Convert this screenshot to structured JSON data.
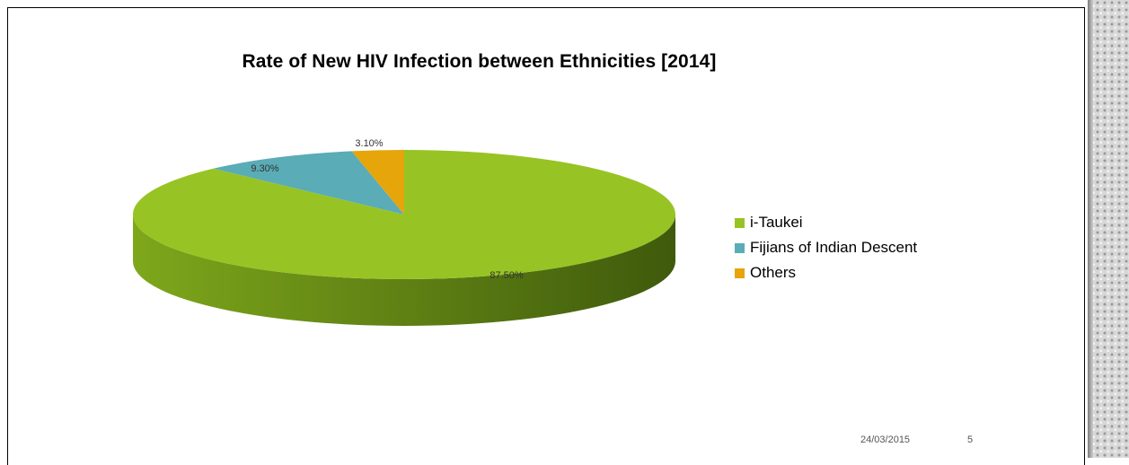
{
  "chart_data": {
    "type": "pie",
    "title": "Rate of New HIV Infection between Ethnicities [2014]",
    "slices": [
      {
        "label": "i-Taukei",
        "value": 87.5,
        "value_label": "87.50%",
        "color": "#97c424",
        "side_light": "#7ea71b",
        "side_dark": "#3f5a0c"
      },
      {
        "label": "Fijians of Indian Descent",
        "value": 9.3,
        "value_label": "9.30%",
        "color": "#5aacb6",
        "side_light": "#4a939b",
        "side_dark": "#2f6369"
      },
      {
        "label": "Others",
        "value": 3.1,
        "value_label": "3.10%",
        "color": "#e6a50a",
        "side_light": "#c28a06",
        "side_dark": "#8a6204"
      }
    ],
    "legend_position": "right"
  },
  "footer": {
    "date": "24/03/2015",
    "page": "5"
  }
}
